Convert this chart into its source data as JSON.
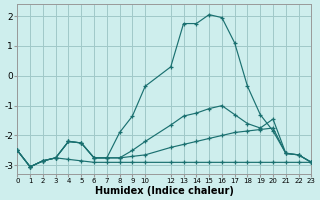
{
  "xlabel": "Humidex (Indice chaleur)",
  "bg_color": "#ceeeed",
  "grid_color": "#a0c8c8",
  "line_color": "#1a7070",
  "xlim": [
    0,
    23
  ],
  "ylim": [
    -3.3,
    2.4
  ],
  "yticks": [
    -3,
    -2,
    -1,
    0,
    1,
    2
  ],
  "xtick_positions": [
    0,
    1,
    2,
    3,
    4,
    5,
    6,
    7,
    8,
    9,
    10,
    12,
    13,
    14,
    15,
    16,
    17,
    18,
    19,
    20,
    21,
    22,
    23
  ],
  "xtick_labels": [
    "0",
    "1",
    "2",
    "3",
    "4",
    "5",
    "6",
    "7",
    "8",
    "9",
    "10",
    "12",
    "13",
    "14",
    "15",
    "16",
    "17",
    "18",
    "19",
    "20",
    "21",
    "22",
    "23"
  ],
  "series": [
    {
      "x": [
        0,
        1,
        2,
        3,
        4,
        5,
        6,
        7,
        8,
        9,
        10,
        12,
        13,
        14,
        15,
        16,
        17,
        18,
        19,
        20,
        21,
        22,
        23
      ],
      "y": [
        -2.5,
        -3.05,
        -2.85,
        -2.75,
        -2.8,
        -2.85,
        -2.9,
        -2.9,
        -2.9,
        -2.9,
        -2.9,
        -2.9,
        -2.9,
        -2.9,
        -2.9,
        -2.9,
        -2.9,
        -2.9,
        -2.9,
        -2.9,
        -2.9,
        -2.9,
        -2.9
      ]
    },
    {
      "x": [
        0,
        1,
        2,
        3,
        4,
        5,
        6,
        7,
        8,
        9,
        10,
        12,
        13,
        14,
        15,
        16,
        17,
        18,
        19,
        20,
        21,
        22,
        23
      ],
      "y": [
        -2.5,
        -3.05,
        -2.85,
        -2.75,
        -2.2,
        -2.25,
        -2.75,
        -2.75,
        -2.75,
        -2.7,
        -2.65,
        -2.4,
        -2.3,
        -2.2,
        -2.1,
        -2.0,
        -1.9,
        -1.85,
        -1.8,
        -1.75,
        -2.6,
        -2.65,
        -2.9
      ]
    },
    {
      "x": [
        0,
        1,
        2,
        3,
        4,
        5,
        6,
        7,
        8,
        9,
        10,
        12,
        13,
        14,
        15,
        16,
        17,
        18,
        19,
        20,
        21,
        22,
        23
      ],
      "y": [
        -2.5,
        -3.05,
        -2.85,
        -2.75,
        -2.2,
        -2.25,
        -2.75,
        -2.75,
        -2.75,
        -2.5,
        -2.2,
        -1.65,
        -1.35,
        -1.25,
        -1.1,
        -1.0,
        -1.3,
        -1.6,
        -1.75,
        -1.45,
        -2.6,
        -2.65,
        -2.9
      ]
    },
    {
      "x": [
        0,
        1,
        2,
        3,
        4,
        5,
        6,
        7,
        8,
        9,
        10,
        12,
        13,
        14,
        15,
        16,
        17,
        18,
        19,
        20,
        21,
        22,
        23
      ],
      "y": [
        -2.5,
        -3.05,
        -2.85,
        -2.75,
        -2.2,
        -2.25,
        -2.75,
        -2.75,
        -1.9,
        -1.35,
        -0.35,
        0.3,
        1.75,
        1.75,
        2.05,
        1.95,
        1.1,
        -0.35,
        -1.3,
        -1.85,
        -2.6,
        -2.65,
        -2.9
      ]
    }
  ]
}
